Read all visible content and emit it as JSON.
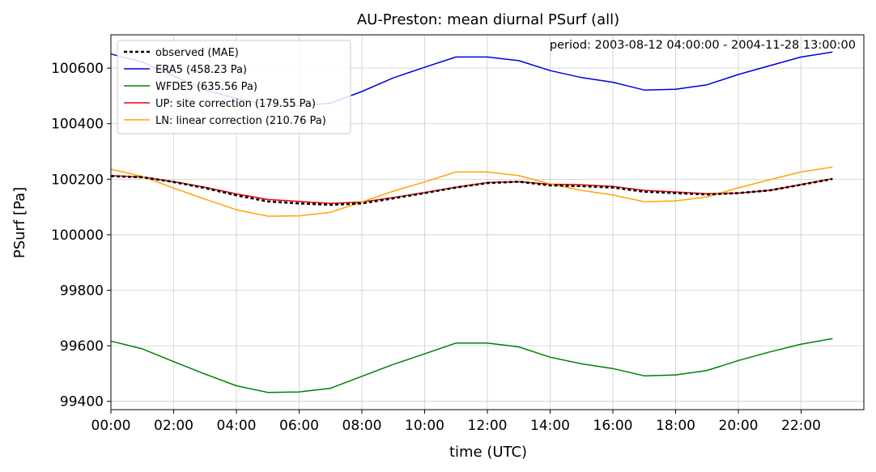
{
  "chart_data": {
    "type": "line",
    "title": "AU-Preston: mean diurnal PSurf (all)",
    "xlabel": "time (UTC)",
    "ylabel": "PSurf [Pa]",
    "annotation": "period: 2003-08-12 04:00:00 - 2004-11-28 13:00:00",
    "x": [
      0,
      1,
      2,
      3,
      4,
      5,
      6,
      7,
      8,
      9,
      10,
      11,
      12,
      13,
      14,
      15,
      16,
      17,
      18,
      19,
      20,
      21,
      22,
      23
    ],
    "xlim": [
      0,
      24
    ],
    "ylim": [
      99370,
      100720
    ],
    "xticks": [
      0,
      2,
      4,
      6,
      8,
      10,
      12,
      14,
      16,
      18,
      20,
      22
    ],
    "xtick_labels": [
      "00:00",
      "02:00",
      "04:00",
      "06:00",
      "08:00",
      "10:00",
      "12:00",
      "14:00",
      "16:00",
      "18:00",
      "20:00",
      "22:00"
    ],
    "yticks": [
      99400,
      99600,
      99800,
      100000,
      100200,
      100400,
      100600
    ],
    "ytick_labels": [
      "99400",
      "99600",
      "99800",
      "100000",
      "100200",
      "100400",
      "100600"
    ],
    "grid": true,
    "legend_position": "top-left",
    "series": [
      {
        "name": "observed (MAE)",
        "color": "#000000",
        "dashed": true,
        "values": [
          100211,
          100207,
          100190,
          100168,
          100142,
          100120,
          100113,
          100108,
          100113,
          100131,
          100150,
          100170,
          100186,
          100191,
          100178,
          100175,
          100170,
          100155,
          100150,
          100145,
          100150,
          100160,
          100180,
          100201
        ]
      },
      {
        "name": "ERA5 (458.23 Pa)",
        "color": "#0000dd",
        "dashed": false,
        "values": [
          100651,
          100622,
          100572,
          100522,
          100490,
          100468,
          100464,
          100474,
          100516,
          100565,
          100603,
          100640,
          100640,
          100627,
          100591,
          100566,
          100549,
          100521,
          100524,
          100540,
          100577,
          100609,
          100640,
          100658
        ]
      },
      {
        "name": "WFDE5 (635.56 Pa)",
        "color": "#008000",
        "dashed": false,
        "values": [
          99617,
          99589,
          99543,
          99498,
          99456,
          99432,
          99434,
          99447,
          99490,
          99533,
          99571,
          99610,
          99610,
          99596,
          99559,
          99535,
          99518,
          99492,
          99495,
          99511,
          99547,
          99578,
          99606,
          99626
        ]
      },
      {
        "name": "UP: site correction (179.55 Pa)",
        "color": "#ee0000",
        "dashed": false,
        "values": [
          100213,
          100208,
          100191,
          100171,
          100147,
          100127,
          100120,
          100113,
          100118,
          100134,
          100152,
          100171,
          100188,
          100191,
          100182,
          100180,
          100174,
          100160,
          100154,
          100148,
          100150,
          100160,
          100181,
          100202
        ]
      },
      {
        "name": "LN: linear correction (210.76 Pa)",
        "color": "#ffa500",
        "dashed": false,
        "values": [
          100236,
          100210,
          100168,
          100128,
          100090,
          100067,
          100068,
          100081,
          100118,
          100157,
          100190,
          100226,
          100226,
          100213,
          100183,
          100160,
          100143,
          100119,
          100122,
          100136,
          100169,
          100198,
          100226,
          100244
        ]
      }
    ]
  }
}
